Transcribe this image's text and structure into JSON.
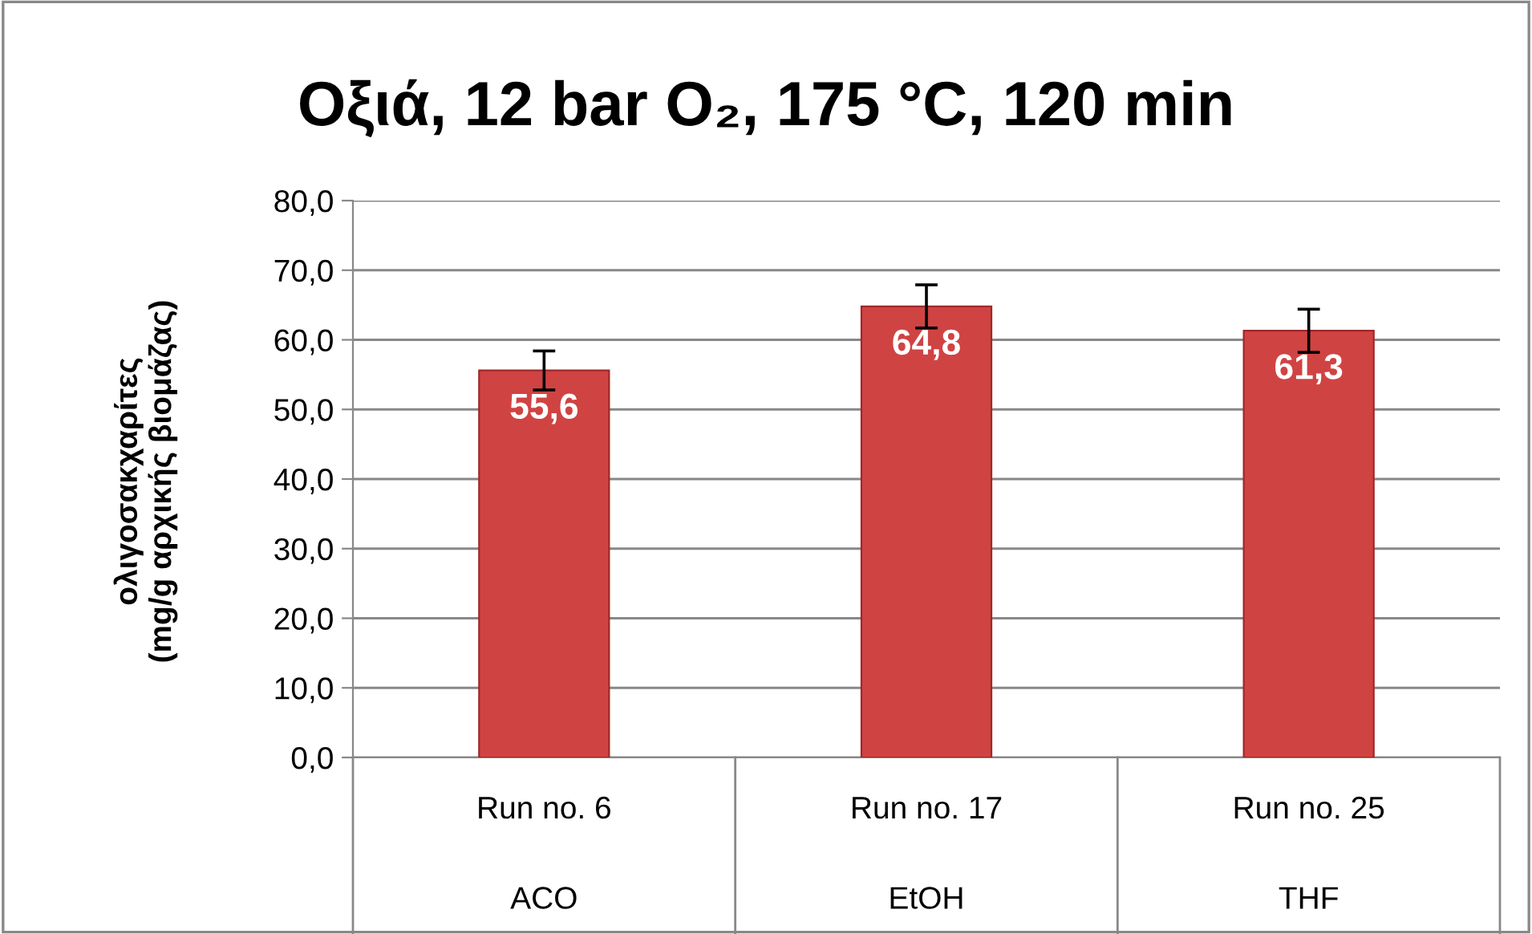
{
  "chart_data": {
    "type": "bar",
    "title": "Οξιά, 12 bar O₂, 175 °C, 120 min",
    "ylabel": "ολιγοσακχαρίτες\n(mg/g αρχικής βιομάζας)",
    "categories": [
      "Run no. 6\nACO",
      "Run no. 17\nEtOH",
      "Run no. 25\nTHF"
    ],
    "values": [
      55.6,
      64.8,
      61.3
    ],
    "errors": [
      2.8,
      3.1,
      3.1
    ],
    "color": "#d04343",
    "data_labels": true,
    "value_labels": [
      "55,6",
      "64,8",
      "61,3"
    ],
    "ylim": [
      0,
      80
    ],
    "yticks": [
      {
        "value": 0,
        "label": "0,0"
      },
      {
        "value": 10,
        "label": "10,0"
      },
      {
        "value": 20,
        "label": "20,0"
      },
      {
        "value": 30,
        "label": "30,0"
      },
      {
        "value": 40,
        "label": "40,0"
      },
      {
        "value": 50,
        "label": "50,0"
      },
      {
        "value": 60,
        "label": "60,0"
      },
      {
        "value": 70,
        "label": "70,0"
      },
      {
        "value": 80,
        "label": "80,0"
      }
    ],
    "grid": "y"
  }
}
